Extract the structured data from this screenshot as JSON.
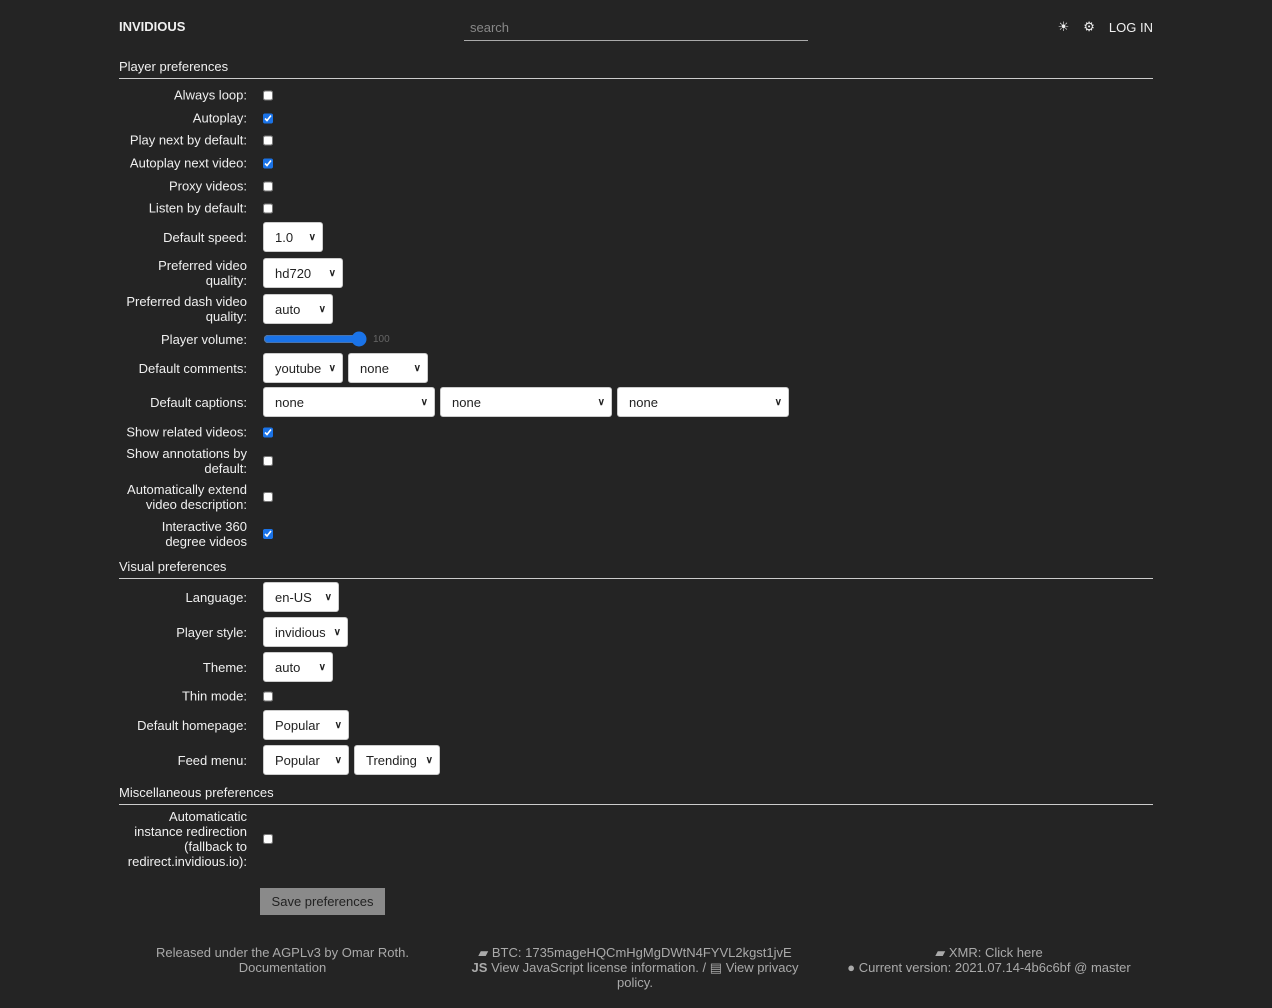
{
  "header": {
    "brand": "INVIDIOUS",
    "search_placeholder": "search",
    "theme_icon": "sun-icon",
    "settings_icon": "gear-icon",
    "login": "LOG IN"
  },
  "sections": {
    "player": "Player preferences",
    "visual": "Visual preferences",
    "misc": "Miscellaneous preferences"
  },
  "rows": [
    {
      "label": "Always loop:",
      "type": "checkbox",
      "checked": false
    },
    {
      "label": "Autoplay:",
      "type": "checkbox",
      "checked": true
    },
    {
      "label": "Play next by default:",
      "type": "checkbox",
      "checked": false
    },
    {
      "label": "Autoplay next video:",
      "type": "checkbox",
      "checked": true
    },
    {
      "label": "Proxy videos:",
      "type": "checkbox",
      "checked": false
    },
    {
      "label": "Listen by default:",
      "type": "checkbox",
      "checked": false
    },
    {
      "label": "Default speed:",
      "type": "select",
      "values": [
        "1.0"
      ]
    },
    {
      "label": "Preferred video quality:",
      "type": "select",
      "values": [
        "hd720"
      ]
    },
    {
      "label": "Preferred dash video quality:",
      "type": "select",
      "values": [
        "auto"
      ]
    },
    {
      "label": "Player volume:",
      "type": "range",
      "value": 100
    },
    {
      "label": "Default comments:",
      "type": "select",
      "values": [
        "youtube",
        "none"
      ]
    },
    {
      "label": "Default captions:",
      "type": "select",
      "values": [
        "none",
        "none",
        "none"
      ]
    },
    {
      "label": "Show related videos:",
      "type": "checkbox",
      "checked": true
    },
    {
      "label": "Show annotations by default:",
      "type": "checkbox",
      "checked": false
    },
    {
      "label": "Automatically extend video description:",
      "type": "checkbox",
      "checked": false
    },
    {
      "label": "Interactive 360 degree videos",
      "type": "checkbox",
      "checked": true
    },
    {
      "label": "Language:",
      "type": "select",
      "values": [
        "en-US"
      ]
    },
    {
      "label": "Player style:",
      "type": "select",
      "values": [
        "invidious"
      ]
    },
    {
      "label": "Theme:",
      "type": "select",
      "values": [
        "auto"
      ]
    },
    {
      "label": "Thin mode:",
      "type": "checkbox",
      "checked": false
    },
    {
      "label": "Default homepage:",
      "type": "select",
      "values": [
        "Popular"
      ]
    },
    {
      "label": "Feed menu:",
      "type": "select",
      "values": [
        "Popular",
        "Trending"
      ]
    },
    {
      "label": "Automaticatic instance redirection (fallback to redirect.invidious.io):",
      "type": "checkbox",
      "checked": false
    }
  ],
  "save_label": "Save preferences",
  "footer": {
    "license": "Released under the AGPLv3 by Omar Roth.",
    "documentation": "Documentation",
    "btc": "BTC: 1735mageHQCmHgMgDWtN4FYVL2kgst1jvE",
    "js_license": "View JavaScript license information.",
    "separator": "/",
    "privacy": "View privacy policy.",
    "xmr": "XMR: Click here",
    "version": "Current version: 2021.07.14-4b6c6bf @ master"
  }
}
